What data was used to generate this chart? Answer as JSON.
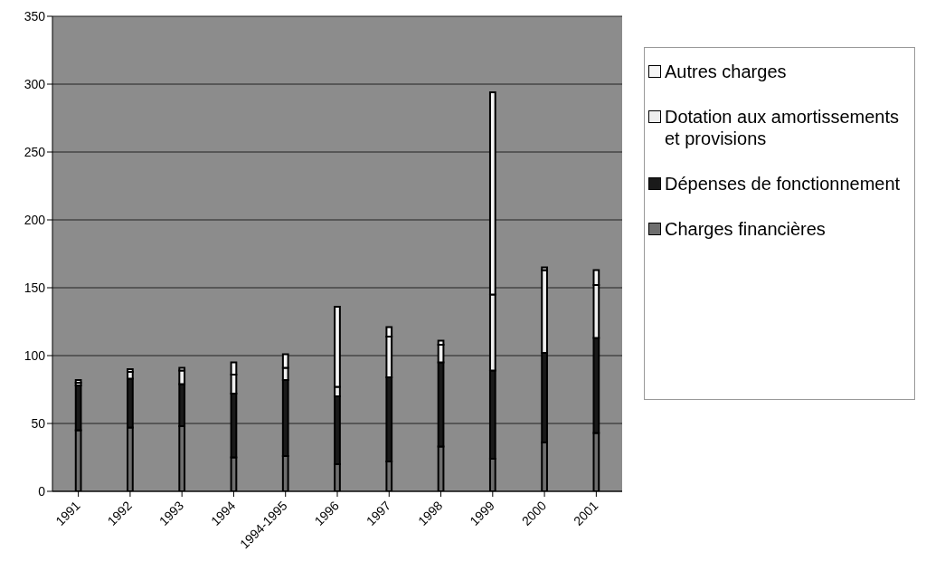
{
  "chart_data": {
    "type": "bar",
    "stacked": true,
    "categories": [
      "1991",
      "1992",
      "1993",
      "1994",
      "1994-1995",
      "1996",
      "1997",
      "1998",
      "1999",
      "2000",
      "2001"
    ],
    "series": [
      {
        "name": "Charges financières",
        "color": "#6e6e6e",
        "values": [
          45,
          47,
          48,
          25,
          26,
          20,
          22,
          33,
          24,
          36,
          43
        ]
      },
      {
        "name": "Dépenses de fonctionnement",
        "color": "#1a1a1a",
        "values": [
          33,
          36,
          31,
          47,
          56,
          50,
          62,
          62,
          65,
          66,
          70
        ]
      },
      {
        "name": "Dotation aux amortissements et provisions",
        "color": "#eeeeee",
        "values": [
          2,
          5,
          10,
          14,
          9,
          7,
          30,
          13,
          56,
          61,
          39
        ]
      },
      {
        "name": "Autres charges",
        "color": "#f6f6f6",
        "values": [
          2,
          2,
          2,
          9,
          10,
          59,
          7,
          3,
          149,
          2,
          11
        ]
      }
    ],
    "ylim": [
      0,
      350
    ],
    "yticks": [
      0,
      50,
      100,
      150,
      200,
      250,
      300,
      350
    ],
    "grid": "y",
    "legend": "right"
  }
}
